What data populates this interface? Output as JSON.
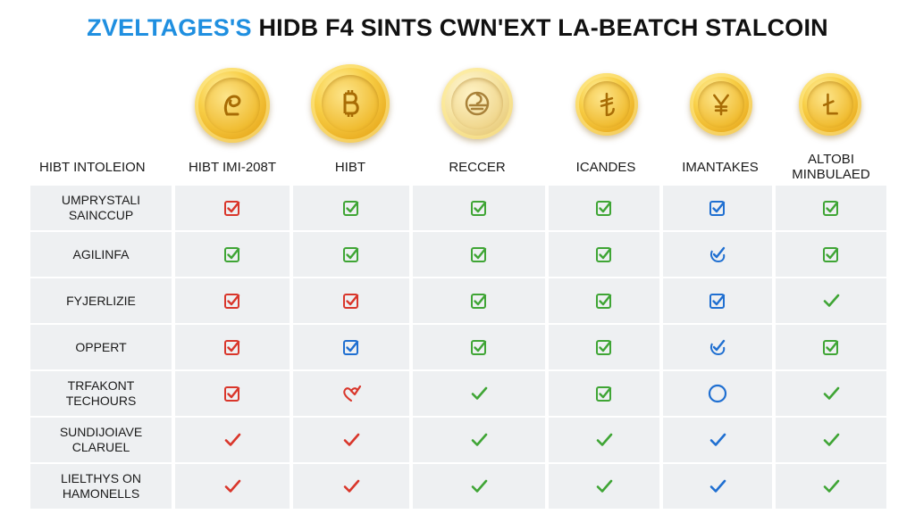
{
  "title": {
    "accent": "ZVELTAGES'S",
    "rest": "HIDB F4 SINTS CWN'EXT LA-BEATCH STALCOIN"
  },
  "coins": [
    {
      "name": "coin-1",
      "symbol": "p-glyph"
    },
    {
      "name": "coin-2",
      "symbol": "bitcoin-glyph"
    },
    {
      "name": "coin-3",
      "symbol": "swirl-glyph"
    },
    {
      "name": "coin-4",
      "symbol": "lira-glyph"
    },
    {
      "name": "coin-5",
      "symbol": "yen-glyph"
    },
    {
      "name": "coin-6",
      "symbol": "l-glyph"
    }
  ],
  "columns": {
    "label_header": "HIBT INTOLEION",
    "headers": [
      "HIBT IMI-208T",
      "HIBT",
      "RECCER",
      "ICANDES",
      "IMANTAKES",
      "ALTOBI MINBULAED"
    ]
  },
  "rows": [
    {
      "label": "UMPRYSTALI SAINCCUP",
      "marks": [
        "box-check-red",
        "box-check-green",
        "box-check-green",
        "box-check-green",
        "box-check-blue",
        "box-check-green"
      ]
    },
    {
      "label": "AGILINFA",
      "marks": [
        "box-check-green",
        "box-check-green",
        "box-check-green",
        "box-check-green",
        "swirl-check-blue",
        "box-check-green"
      ]
    },
    {
      "label": "FYJERLIZIE",
      "marks": [
        "box-check-red",
        "box-check-red",
        "box-check-green",
        "box-check-green",
        "box-check-blue",
        "check-green"
      ]
    },
    {
      "label": "OPPERT",
      "marks": [
        "box-check-red",
        "box-check-blue",
        "box-check-green",
        "box-check-green",
        "swirl-check-blue",
        "box-check-green"
      ]
    },
    {
      "label": "TRFAKONT TECHOURS",
      "marks": [
        "box-check-red",
        "heart-check-red",
        "check-green",
        "box-check-green",
        "circle-blue",
        "check-green"
      ]
    },
    {
      "label": "SUNDIJOIAVE CLARUEL",
      "marks": [
        "check-red",
        "check-red",
        "check-green",
        "check-green",
        "check-blue",
        "check-green"
      ]
    },
    {
      "label": "LIELTHYS ON HAMONELLS",
      "marks": [
        "check-red",
        "check-red",
        "check-green",
        "check-green",
        "check-blue",
        "check-green"
      ]
    }
  ],
  "colors": {
    "red": "#d9362b",
    "green": "#3fa535",
    "blue": "#1f6fd1",
    "cell_bg": "#eef0f2",
    "title_accent": "#1f8fe0"
  }
}
